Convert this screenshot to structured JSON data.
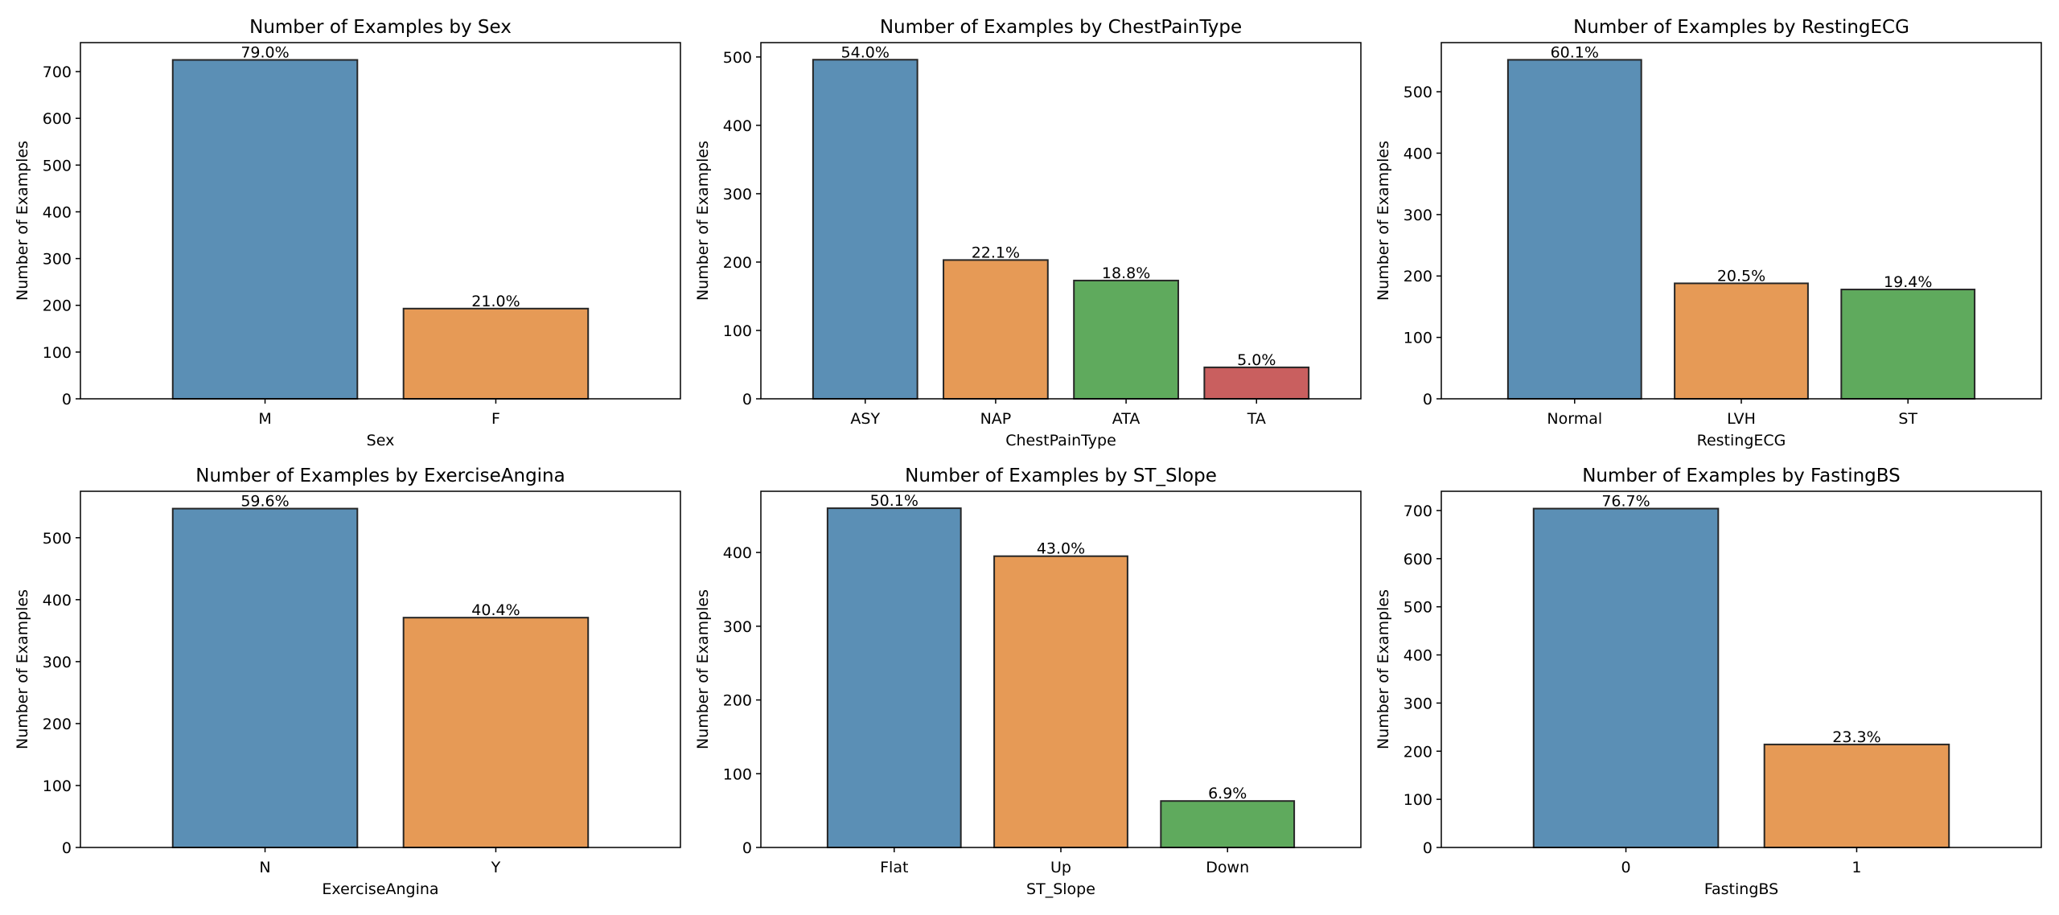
{
  "chart_data": [
    {
      "type": "bar",
      "title": "Number of Examples by Sex",
      "xlabel": "Sex",
      "ylabel": "Number of Examples",
      "categories": [
        "M",
        "F"
      ],
      "values": [
        725,
        193
      ],
      "labels": [
        "79.0%",
        "21.0%"
      ],
      "ylim": [
        0,
        762
      ],
      "yticks": [
        0,
        100,
        200,
        300,
        400,
        500,
        600,
        700
      ],
      "colors": [
        "#5b8fb5",
        "#e69a56"
      ],
      "grid": false
    },
    {
      "type": "bar",
      "title": "Number of Examples by ChestPainType",
      "xlabel": "ChestPainType",
      "ylabel": "Number of Examples",
      "categories": [
        "ASY",
        "NAP",
        "ATA",
        "TA"
      ],
      "values": [
        496,
        203,
        173,
        46
      ],
      "labels": [
        "54.0%",
        "22.1%",
        "18.8%",
        "5.0%"
      ],
      "ylim": [
        0,
        521
      ],
      "yticks": [
        0,
        100,
        200,
        300,
        400,
        500
      ],
      "colors": [
        "#5b8fb5",
        "#e69a56",
        "#5faa5d",
        "#c95f5f"
      ],
      "grid": false
    },
    {
      "type": "bar",
      "title": "Number of Examples by RestingECG",
      "xlabel": "RestingECG",
      "ylabel": "Number of Examples",
      "categories": [
        "Normal",
        "LVH",
        "ST"
      ],
      "values": [
        552,
        188,
        178
      ],
      "labels": [
        "60.1%",
        "20.5%",
        "19.4%"
      ],
      "ylim": [
        0,
        580
      ],
      "yticks": [
        0,
        100,
        200,
        300,
        400,
        500
      ],
      "colors": [
        "#5b8fb5",
        "#e69a56",
        "#5faa5d"
      ],
      "grid": false
    },
    {
      "type": "bar",
      "title": "Number of Examples by ExerciseAngina",
      "xlabel": "ExerciseAngina",
      "ylabel": "Number of Examples",
      "categories": [
        "N",
        "Y"
      ],
      "values": [
        547,
        371
      ],
      "labels": [
        "59.6%",
        "40.4%"
      ],
      "ylim": [
        0,
        575
      ],
      "yticks": [
        0,
        100,
        200,
        300,
        400,
        500
      ],
      "colors": [
        "#5b8fb5",
        "#e69a56"
      ],
      "grid": false
    },
    {
      "type": "bar",
      "title": "Number of Examples by ST_Slope",
      "xlabel": "ST_Slope",
      "ylabel": "Number of Examples",
      "categories": [
        "Flat",
        "Up",
        "Down"
      ],
      "values": [
        460,
        395,
        63
      ],
      "labels": [
        "50.1%",
        "43.0%",
        "6.9%"
      ],
      "ylim": [
        0,
        483
      ],
      "yticks": [
        0,
        100,
        200,
        300,
        400
      ],
      "colors": [
        "#5b8fb5",
        "#e69a56",
        "#5faa5d"
      ],
      "grid": false
    },
    {
      "type": "bar",
      "title": "Number of Examples by FastingBS",
      "xlabel": "FastingBS",
      "ylabel": "Number of Examples",
      "categories": [
        "0",
        "1"
      ],
      "values": [
        704,
        214
      ],
      "labels": [
        "76.7%",
        "23.3%"
      ],
      "ylim": [
        0,
        740
      ],
      "yticks": [
        0,
        100,
        200,
        300,
        400,
        500,
        600,
        700
      ],
      "colors": [
        "#5b8fb5",
        "#e69a56"
      ],
      "grid": false
    }
  ]
}
